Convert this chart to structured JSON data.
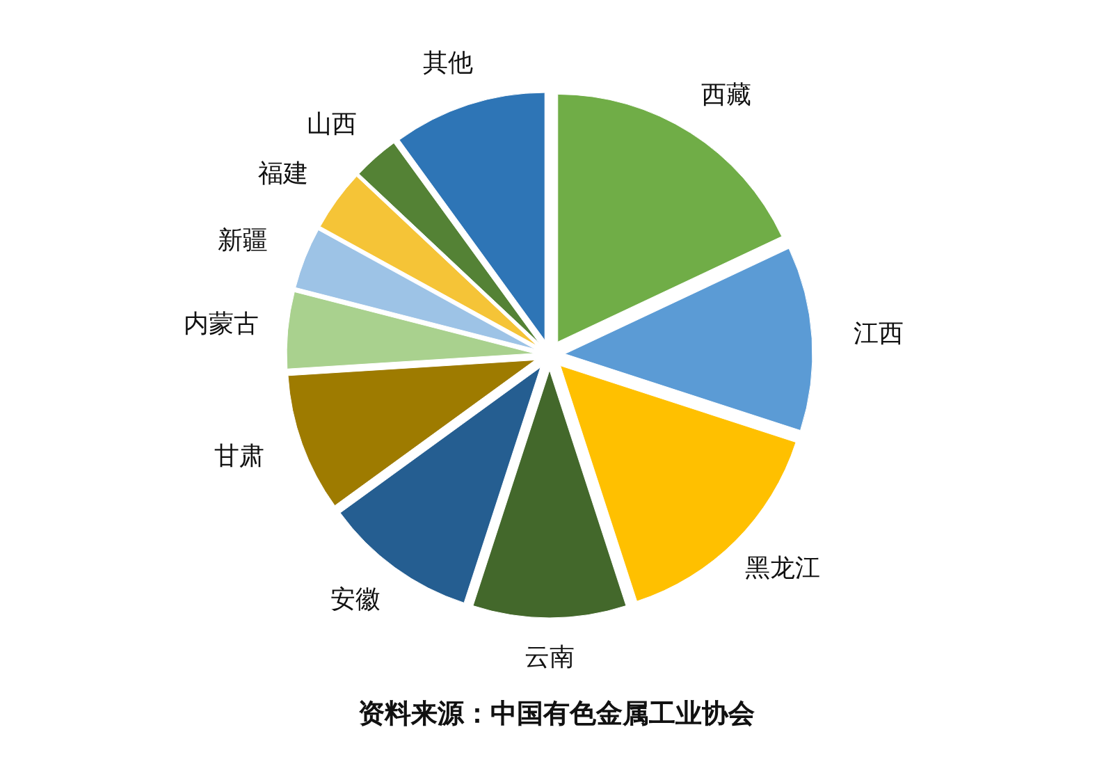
{
  "chart_data": {
    "type": "pie",
    "categories": [
      "西藏",
      "江西",
      "黑龙江",
      "云南",
      "安徽",
      "甘肃",
      "内蒙古",
      "新疆",
      "福建",
      "山西",
      "其他"
    ],
    "values": [
      18,
      12,
      15,
      10,
      10,
      9,
      5,
      4,
      4,
      3,
      10
    ],
    "colors": [
      "#70ad47",
      "#5b9bd5",
      "#ffc000",
      "#43682b",
      "#255e91",
      "#9e7b00",
      "#a9d18e",
      "#9dc3e6",
      "#f5c437",
      "#548235",
      "#2e75b6"
    ],
    "annotations": [
      "资料来源：中国有色金属工业协会"
    ]
  }
}
